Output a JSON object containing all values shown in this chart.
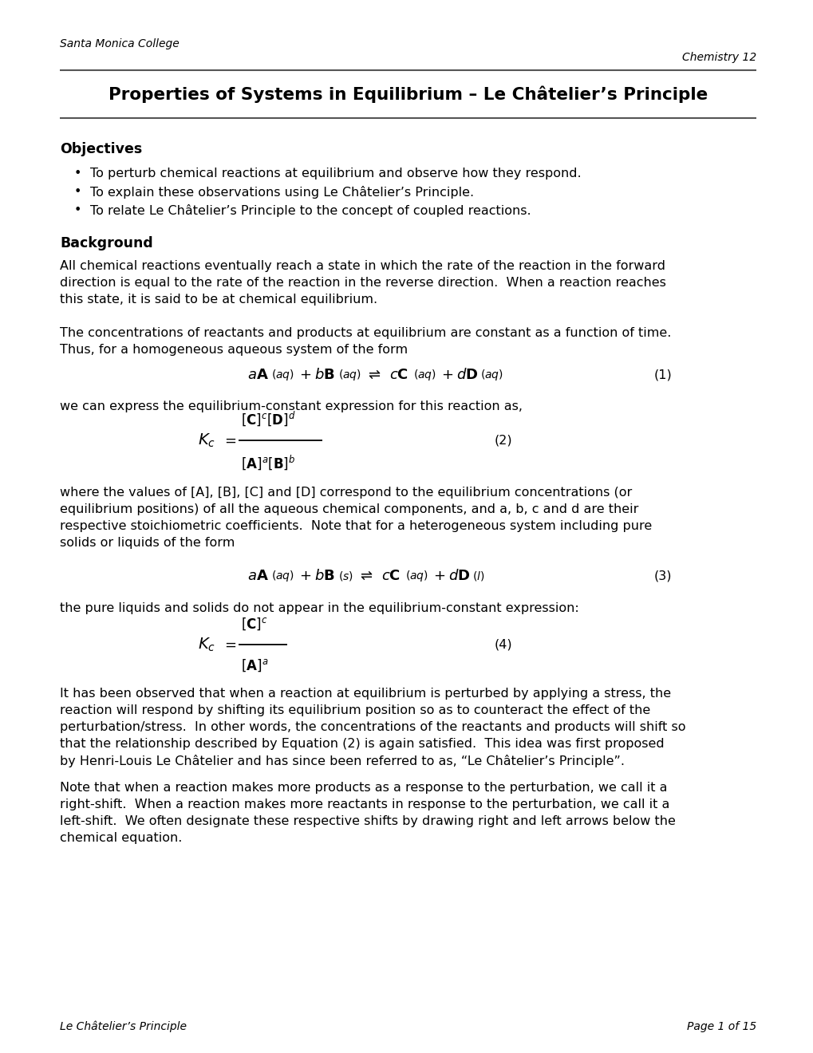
{
  "bg_color": "#ffffff",
  "header_left": "Santa Monica College",
  "header_right": "Chemistry 12",
  "title": "Properties of Systems in Equilibrium – Le Châtelier’s Principle",
  "section1": "Objectives",
  "bullets": [
    "To perturb chemical reactions at equilibrium and observe how they respond.",
    "To explain these observations using Le Châtelier’s Principle.",
    "To relate Le Châtelier’s Principle to the concept of coupled reactions."
  ],
  "section2": "Background",
  "para1_lines": [
    "All chemical reactions eventually reach a state in which the rate of the reaction in the forward",
    "direction is equal to the rate of the reaction in the reverse direction.  When a reaction reaches",
    "this state, it is said to be at chemical equilibrium."
  ],
  "para2_lines": [
    "The concentrations of reactants and products at equilibrium are constant as a function of time.",
    "Thus, for a homogeneous aqueous system of the form"
  ],
  "eq1_label": "(1)",
  "para3": "we can express the equilibrium-constant expression for this reaction as,",
  "eq2_label": "(2)",
  "para4_lines": [
    "where the values of [A], [B], [C] and [D] correspond to the equilibrium concentrations (or",
    "equilibrium positions) of all the aqueous chemical components, and a, b, c and d are their",
    "respective stoichiometric coefficients.  Note that for a heterogeneous system including pure",
    "solids or liquids of the form"
  ],
  "eq3_label": "(3)",
  "para5": "the pure liquids and solids do not appear in the equilibrium-constant expression:",
  "eq4_label": "(4)",
  "para6_lines": [
    "It has been observed that when a reaction at equilibrium is perturbed by applying a stress, the",
    "reaction will respond by shifting its equilibrium position so as to counteract the effect of the",
    "perturbation/stress.  In other words, the concentrations of the reactants and products will shift so",
    "that the relationship described by Equation (2) is again satisfied.  This idea was first proposed",
    "by Henri-Louis Le Châtelier and has since been referred to as, “Le Châtelier’s Principle”."
  ],
  "para7_lines": [
    "Note that when a reaction makes more products as a response to the perturbation, we call it a",
    "right-shift.  When a reaction makes more reactants in response to the perturbation, we call it a",
    "left-shift.  We often designate these respective shifts by drawing right and left arrows below the",
    "chemical equation."
  ],
  "footer_left": "Le Châtelier’s Principle",
  "footer_right": "Page 1 of 15"
}
